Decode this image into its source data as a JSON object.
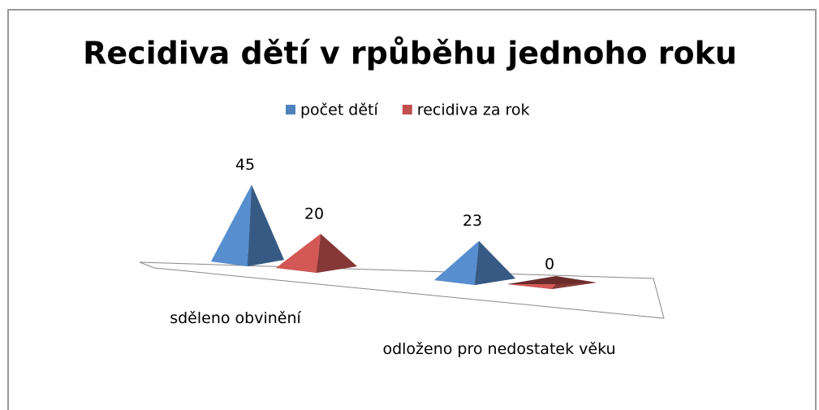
{
  "chart_data": {
    "type": "pyramid3d",
    "title": "Recidiva dětí v rpůběhu jednoho roku",
    "categories": [
      "sděleno obvinění",
      "odloženo pro nedostatek věku"
    ],
    "series": [
      {
        "name": "počet dětí",
        "color": "#4f81bd",
        "values": [
          45,
          23
        ]
      },
      {
        "name": "recidiva za rok",
        "color": "#c0504d",
        "values": [
          20,
          0
        ]
      }
    ]
  }
}
